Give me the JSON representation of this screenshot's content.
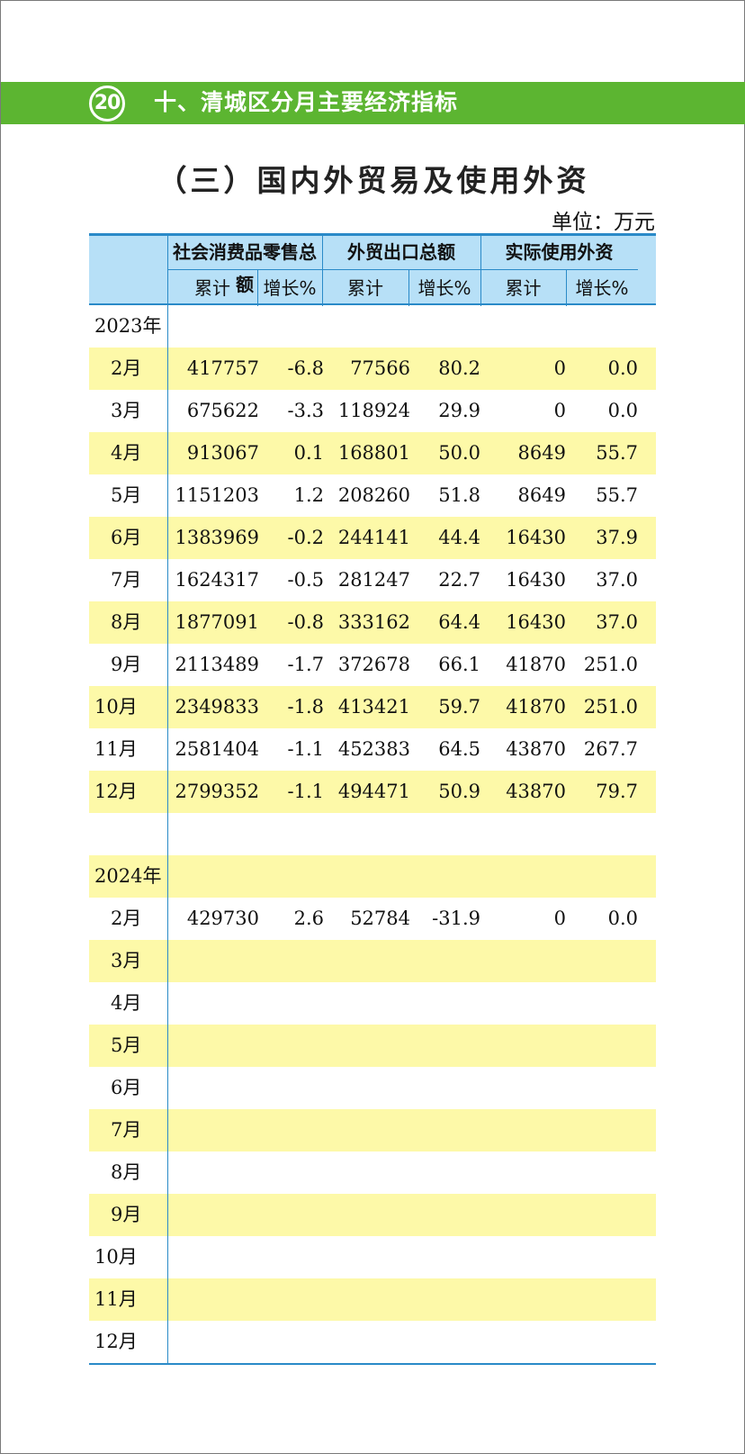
{
  "page_number": "20",
  "section_title": "十、清城区分月主要经济指标",
  "title": "（三）国内外贸易及使用外资",
  "unit": "单位：万元",
  "header": {
    "groups": [
      "社会消费品零售总额",
      "外贸出口总额",
      "实际使用外资"
    ],
    "sub": [
      "累计",
      "增长%",
      "累计",
      "增长%",
      "累计",
      "增长%"
    ]
  },
  "year2023": {
    "label": "2023年",
    "rows": [
      {
        "m": "2月",
        "v": [
          "417757",
          "-6.8",
          "77566",
          "80.2",
          "0",
          "0.0"
        ]
      },
      {
        "m": "3月",
        "v": [
          "675622",
          "-3.3",
          "118924",
          "29.9",
          "0",
          "0.0"
        ]
      },
      {
        "m": "4月",
        "v": [
          "913067",
          "0.1",
          "168801",
          "50.0",
          "8649",
          "55.7"
        ]
      },
      {
        "m": "5月",
        "v": [
          "1151203",
          "1.2",
          "208260",
          "51.8",
          "8649",
          "55.7"
        ]
      },
      {
        "m": "6月",
        "v": [
          "1383969",
          "-0.2",
          "244141",
          "44.4",
          "16430",
          "37.9"
        ]
      },
      {
        "m": "7月",
        "v": [
          "1624317",
          "-0.5",
          "281247",
          "22.7",
          "16430",
          "37.0"
        ]
      },
      {
        "m": "8月",
        "v": [
          "1877091",
          "-0.8",
          "333162",
          "64.4",
          "16430",
          "37.0"
        ]
      },
      {
        "m": "9月",
        "v": [
          "2113489",
          "-1.7",
          "372678",
          "66.1",
          "41870",
          "251.0"
        ]
      },
      {
        "m": "10月",
        "v": [
          "2349833",
          "-1.8",
          "413421",
          "59.7",
          "41870",
          "251.0"
        ]
      },
      {
        "m": "11月",
        "v": [
          "2581404",
          "-1.1",
          "452383",
          "64.5",
          "43870",
          "267.7"
        ]
      },
      {
        "m": "12月",
        "v": [
          "2799352",
          "-1.1",
          "494471",
          "50.9",
          "43870",
          "79.7"
        ]
      }
    ]
  },
  "year2024": {
    "label": "2024年",
    "rows": [
      {
        "m": "2月",
        "v": [
          "429730",
          "2.6",
          "52784",
          "-31.9",
          "0",
          "0.0"
        ]
      },
      {
        "m": "3月",
        "v": [
          "",
          "",
          "",
          "",
          "",
          ""
        ]
      },
      {
        "m": "4月",
        "v": [
          "",
          "",
          "",
          "",
          "",
          ""
        ]
      },
      {
        "m": "5月",
        "v": [
          "",
          "",
          "",
          "",
          "",
          ""
        ]
      },
      {
        "m": "6月",
        "v": [
          "",
          "",
          "",
          "",
          "",
          ""
        ]
      },
      {
        "m": "7月",
        "v": [
          "",
          "",
          "",
          "",
          "",
          ""
        ]
      },
      {
        "m": "8月",
        "v": [
          "",
          "",
          "",
          "",
          "",
          ""
        ]
      },
      {
        "m": "9月",
        "v": [
          "",
          "",
          "",
          "",
          "",
          ""
        ]
      },
      {
        "m": "10月",
        "v": [
          "",
          "",
          "",
          "",
          "",
          ""
        ]
      },
      {
        "m": "11月",
        "v": [
          "",
          "",
          "",
          "",
          "",
          ""
        ]
      },
      {
        "m": "12月",
        "v": [
          "",
          "",
          "",
          "",
          "",
          ""
        ]
      }
    ]
  }
}
